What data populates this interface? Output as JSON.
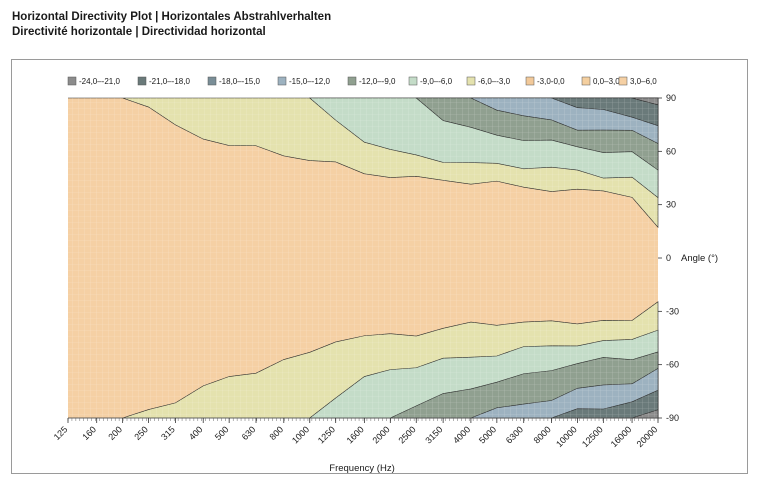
{
  "title_lines": [
    "Horizontal Directivity Plot | Horizontales Abstrahlverhalten",
    "Directivité horizontale | Directividad horizontal"
  ],
  "chart_data": {
    "type": "heatmap",
    "xlabel": "Frequency (Hz)",
    "ylabel": "Angle (°)",
    "x_scale": "log",
    "xlim": [
      125,
      20000
    ],
    "ylim": [
      -90,
      90
    ],
    "x_ticks": [
      "125",
      "160",
      "200",
      "250",
      "315",
      "400",
      "500",
      "630",
      "800",
      "1000",
      "1250",
      "1600",
      "2000",
      "2500",
      "3150",
      "4000",
      "5000",
      "6300",
      "8000",
      "10000",
      "12500",
      "16000",
      "20000"
    ],
    "y_ticks": [
      90,
      60,
      30,
      0,
      -30,
      -60,
      -90
    ],
    "legend": {
      "placement": "top",
      "levels": [
        {
          "label": "-24,0–-21,0",
          "color": "#8c8c8c"
        },
        {
          "label": "-21,0–-18,0",
          "color": "#6a7a7a"
        },
        {
          "label": "-18,0–-15,0",
          "color": "#7a8e97"
        },
        {
          "label": "-15,0–-12,0",
          "color": "#9db2c0"
        },
        {
          "label": "-12,0–-9,0",
          "color": "#90a090"
        },
        {
          "label": "-9,0–-6,0",
          "color": "#c4dcc8"
        },
        {
          "label": "-6,0–-3,0",
          "color": "#e4e2ae"
        },
        {
          "label": "-3,0-0,0",
          "color": "#f2c99a"
        },
        {
          "label": "0,0–3,0",
          "color": "#f4cf9f"
        },
        {
          "label": "3,0–6,0",
          "color": "#f5d0a4"
        }
      ]
    },
    "contours": [
      {
        "label": "-3,0-0,0",
        "color": "#e4e2ae",
        "upper": [
          [
            125,
            90
          ],
          [
            200,
            90
          ],
          [
            250,
            85
          ],
          [
            315,
            73
          ],
          [
            400,
            68
          ],
          [
            500,
            65
          ],
          [
            630,
            62
          ],
          [
            800,
            58
          ],
          [
            1000,
            55
          ],
          [
            1250,
            52
          ],
          [
            1600,
            48
          ],
          [
            2000,
            47
          ],
          [
            2500,
            45
          ],
          [
            3150,
            44
          ],
          [
            4000,
            42
          ],
          [
            5000,
            41
          ],
          [
            6300,
            40
          ],
          [
            8000,
            39
          ],
          [
            10000,
            38
          ],
          [
            12500,
            38
          ],
          [
            16000,
            35
          ],
          [
            20000,
            15
          ]
        ],
        "lower": [
          [
            125,
            -90
          ],
          [
            200,
            -90
          ],
          [
            250,
            -87
          ],
          [
            315,
            -80
          ],
          [
            400,
            -72
          ],
          [
            500,
            -67
          ],
          [
            630,
            -63
          ],
          [
            800,
            -58
          ],
          [
            1000,
            -55
          ],
          [
            1250,
            -46
          ],
          [
            1600,
            -44
          ],
          [
            2000,
            -43
          ],
          [
            2500,
            -42
          ],
          [
            3150,
            -40
          ],
          [
            4000,
            -38
          ],
          [
            5000,
            -37
          ],
          [
            6300,
            -36
          ],
          [
            8000,
            -36
          ],
          [
            10000,
            -35
          ],
          [
            12500,
            -35
          ],
          [
            16000,
            -37
          ],
          [
            20000,
            -24
          ]
        ]
      },
      {
        "label": "-6,0–-3,0",
        "color": "#c4dcc8",
        "upper": [
          [
            1000,
            90
          ],
          [
            1250,
            76
          ],
          [
            1600,
            66
          ],
          [
            2000,
            60
          ],
          [
            2500,
            57
          ],
          [
            3150,
            56
          ],
          [
            4000,
            54
          ],
          [
            5000,
            52
          ],
          [
            6300,
            51
          ],
          [
            8000,
            50
          ],
          [
            10000,
            48
          ],
          [
            12500,
            47
          ],
          [
            16000,
            46
          ],
          [
            20000,
            33
          ]
        ],
        "lower": [
          [
            1000,
            -90
          ],
          [
            1250,
            -78
          ],
          [
            1600,
            -69
          ],
          [
            2000,
            -63
          ],
          [
            2500,
            -60
          ],
          [
            3150,
            -57
          ],
          [
            4000,
            -55
          ],
          [
            5000,
            -54
          ],
          [
            6300,
            -52
          ],
          [
            8000,
            -50
          ],
          [
            10000,
            -48
          ],
          [
            12500,
            -47
          ],
          [
            16000,
            -45
          ],
          [
            20000,
            -39
          ]
        ]
      },
      {
        "label": "-9,0–-6,0",
        "color": "#90a090",
        "upper": [
          [
            2500,
            90
          ],
          [
            3150,
            78
          ],
          [
            4000,
            72
          ],
          [
            5000,
            70
          ],
          [
            6300,
            68
          ],
          [
            8000,
            65
          ],
          [
            10000,
            62
          ],
          [
            12500,
            60
          ],
          [
            16000,
            58
          ],
          [
            20000,
            50
          ]
        ],
        "lower": [
          [
            2000,
            -90
          ],
          [
            2500,
            -84
          ],
          [
            3150,
            -78
          ],
          [
            4000,
            -72
          ],
          [
            5000,
            -69
          ],
          [
            6300,
            -66
          ],
          [
            8000,
            -62
          ],
          [
            10000,
            -60
          ],
          [
            12500,
            -58
          ],
          [
            16000,
            -56
          ],
          [
            20000,
            -52
          ]
        ]
      },
      {
        "label": "-12,0–-9,0",
        "color": "#9db2c0",
        "upper": [
          [
            4000,
            90
          ],
          [
            5000,
            84
          ],
          [
            6300,
            80
          ],
          [
            8000,
            77
          ],
          [
            10000,
            74
          ],
          [
            12500,
            72
          ],
          [
            16000,
            70
          ],
          [
            20000,
            65
          ]
        ],
        "lower": [
          [
            4000,
            -90
          ],
          [
            5000,
            -86
          ],
          [
            6300,
            -82
          ],
          [
            8000,
            -78
          ],
          [
            10000,
            -74
          ],
          [
            12500,
            -72
          ],
          [
            16000,
            -70
          ],
          [
            20000,
            -64
          ]
        ]
      },
      {
        "label": "-15,0–-12,0",
        "color": "#6a7a7a",
        "upper": [
          [
            8000,
            90
          ],
          [
            10000,
            86
          ],
          [
            12500,
            83
          ],
          [
            16000,
            80
          ],
          [
            20000,
            76
          ]
        ],
        "lower": [
          [
            8000,
            -90
          ],
          [
            10000,
            -86
          ],
          [
            12500,
            -83
          ],
          [
            16000,
            -80
          ],
          [
            20000,
            -76
          ]
        ]
      },
      {
        "label": "-21,0–-18,0",
        "color": "#8c8c8c",
        "upper": [
          [
            16000,
            90
          ],
          [
            20000,
            87
          ]
        ],
        "lower": [
          [
            16000,
            -90
          ],
          [
            20000,
            -85
          ]
        ]
      }
    ]
  }
}
